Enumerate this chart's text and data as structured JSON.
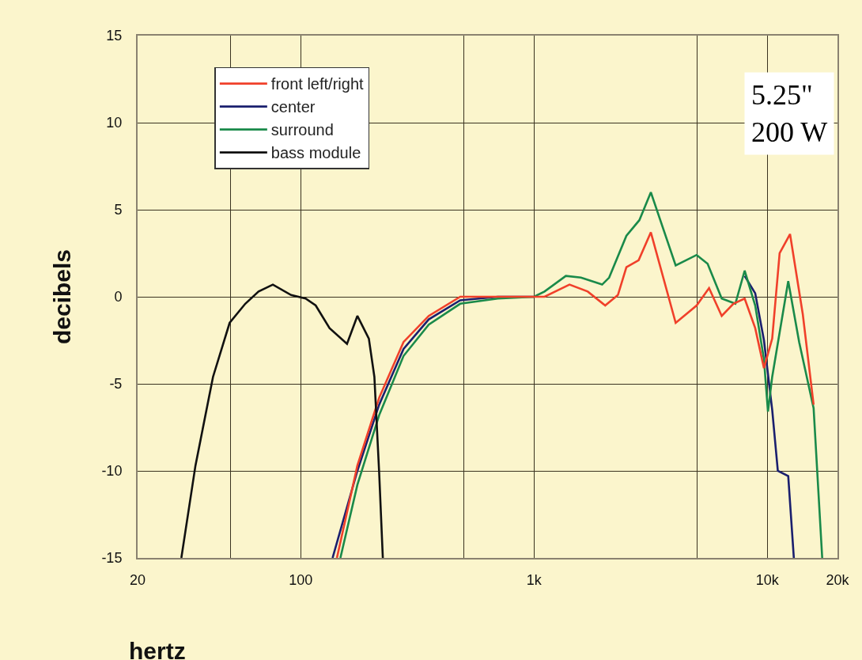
{
  "chart_data": {
    "type": "line",
    "xlabel": "hertz",
    "ylabel": "decibels",
    "log": "x",
    "xlim": [
      20,
      20000
    ],
    "ylim": [
      -15,
      15
    ],
    "xticks": [
      20,
      {
        "value": 50,
        "label": null
      },
      100,
      {
        "value": 500,
        "label": null
      },
      {
        "value": 1000,
        "label": "1k"
      },
      {
        "value": 5000,
        "label": null
      },
      {
        "value": 10000,
        "label": "10k"
      },
      {
        "value": 20000,
        "label": "20k"
      }
    ],
    "yticks": [
      -15,
      -10,
      -5,
      0,
      5,
      10,
      15
    ],
    "grid": true,
    "legend": "top left",
    "marker": "none",
    "line_style": "solid",
    "annotations": [
      "5.25\"",
      "200 W"
    ],
    "series": [
      {
        "name": "front left/right",
        "color": "#f0402a",
        "x": [
          143,
          175,
          217,
          276,
          354,
          483,
          700,
          1000,
          1110,
          1420,
          1700,
          2020,
          2290,
          2490,
          2810,
          3170,
          4050,
          4980,
          5630,
          6380,
          7160,
          8000,
          8880,
          9680,
          10500,
          11300,
          12520,
          14200,
          15800
        ],
        "values": [
          -15,
          -9.7,
          -5.8,
          -2.6,
          -1.1,
          0,
          0,
          0,
          0,
          0.7,
          0.3,
          -0.5,
          0.1,
          1.7,
          2.1,
          3.7,
          -1.5,
          -0.5,
          0.5,
          -1.1,
          -0.4,
          -0.1,
          -1.8,
          -4.1,
          -2.4,
          2.5,
          3.6,
          -1.0,
          -6.2
        ]
      },
      {
        "name": "center",
        "color": "#1a1f6e",
        "x": [
          137,
          175,
          217,
          276,
          354,
          483,
          700,
          1000,
          1110,
          8000,
          8880,
          9680,
          10500,
          11100,
          12300,
          13000
        ],
        "values": [
          -15,
          -10,
          -6.2,
          -3.0,
          -1.3,
          -0.2,
          0,
          0,
          null,
          1.2,
          0.2,
          -2.5,
          -6.5,
          -10,
          -10.3,
          -15
        ]
      },
      {
        "name": "surround",
        "color": "#1a8a4a",
        "x": [
          148,
          175,
          217,
          276,
          354,
          483,
          700,
          1000,
          1110,
          1370,
          1590,
          1960,
          2100,
          2490,
          2830,
          3170,
          4050,
          4980,
          5550,
          6380,
          7300,
          8000,
          8880,
          9680,
          10070,
          10500,
          12300,
          13700,
          15800,
          17200
        ],
        "values": [
          -15,
          -10.8,
          -6.8,
          -3.4,
          -1.6,
          -0.4,
          -0.1,
          0,
          0.3,
          1.2,
          1.1,
          0.7,
          1.1,
          3.5,
          4.4,
          6.0,
          1.8,
          2.4,
          1.9,
          -0.1,
          -0.4,
          1.5,
          -0.5,
          -3.6,
          -6.6,
          -4.6,
          0.9,
          -2.6,
          -6.4,
          -15
        ]
      },
      {
        "name": "bass module",
        "color": "#111111",
        "x": [
          30.8,
          35.4,
          42.1,
          49.6,
          57.9,
          66,
          76,
          91,
          105,
          116,
          133,
          158,
          175,
          196,
          207,
          217,
          225
        ],
        "values": [
          -15,
          -9.7,
          -4.6,
          -1.5,
          -0.4,
          0.3,
          0.7,
          0.1,
          -0.1,
          -0.5,
          -1.8,
          -2.7,
          -1.1,
          -2.4,
          -4.6,
          -10.1,
          -15
        ]
      }
    ]
  }
}
